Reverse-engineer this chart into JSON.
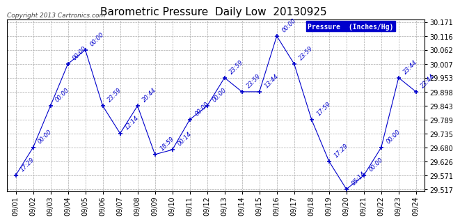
{
  "title": "Barometric Pressure  Daily Low  20130925",
  "copyright": "Copyright 2013 Cartronics.com",
  "legend_label": "Pressure  (Inches/Hg)",
  "x_labels": [
    "09/01",
    "09/02",
    "09/03",
    "09/04",
    "09/05",
    "09/06",
    "09/07",
    "09/08",
    "09/09",
    "09/10",
    "09/11",
    "09/12",
    "09/13",
    "09/14",
    "09/15",
    "09/16",
    "09/17",
    "09/18",
    "09/19",
    "09/20",
    "09/21",
    "09/22",
    "09/23",
    "09/24"
  ],
  "y_values": [
    29.571,
    29.68,
    29.843,
    30.007,
    30.062,
    29.843,
    29.735,
    29.843,
    29.653,
    29.671,
    29.789,
    29.843,
    29.953,
    29.898,
    29.898,
    30.116,
    30.007,
    29.789,
    29.626,
    29.517,
    29.571,
    29.68,
    29.953,
    29.898
  ],
  "point_labels": [
    "17:29",
    "00:00",
    "00:00",
    "00:00",
    "00:00",
    "23:59",
    "12:14",
    "20:44",
    "18:59",
    "00:14",
    "00:00",
    "00:00",
    "23:59",
    "23:59",
    "13:44",
    "00:00",
    "23:59",
    "17:59",
    "17:29",
    "05:14",
    "00:00",
    "00:00",
    "23:44",
    "23:44"
  ],
  "y_ticks": [
    29.517,
    29.571,
    29.626,
    29.68,
    29.735,
    29.789,
    29.843,
    29.898,
    29.953,
    30.007,
    30.062,
    30.116,
    30.171
  ],
  "y_min": 29.507,
  "y_max": 30.181,
  "line_color": "#0000cc",
  "grid_color": "#aaaaaa",
  "bg_color": "#ffffff",
  "title_fontsize": 11,
  "label_fontsize": 7,
  "annotation_fontsize": 6,
  "legend_bg": "#0000cc",
  "legend_text_color": "#ffffff",
  "copyright_color": "#444444"
}
